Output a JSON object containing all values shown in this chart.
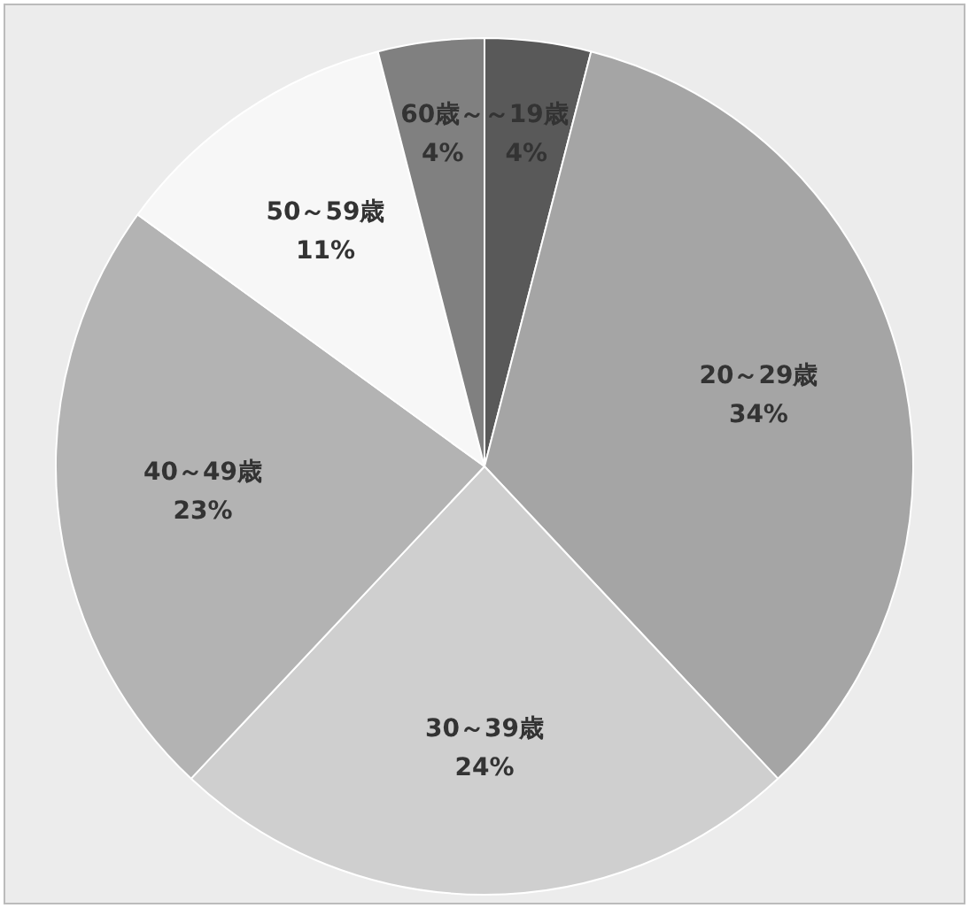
{
  "chart_data": {
    "type": "pie",
    "categories": [
      "～19歳",
      "20～29歳",
      "30～39歳",
      "40～49歳",
      "50～59歳",
      "60歳～"
    ],
    "values": [
      4,
      34,
      24,
      23,
      11,
      4
    ],
    "value_labels": [
      "4%",
      "34%",
      "24%",
      "23%",
      "11%",
      "4%"
    ],
    "colors": [
      "#595959",
      "#a5a5a5",
      "#cfcfcf",
      "#b3b3b3",
      "#f7f7f7",
      "#808080"
    ],
    "data_labels": true,
    "legend": false
  }
}
